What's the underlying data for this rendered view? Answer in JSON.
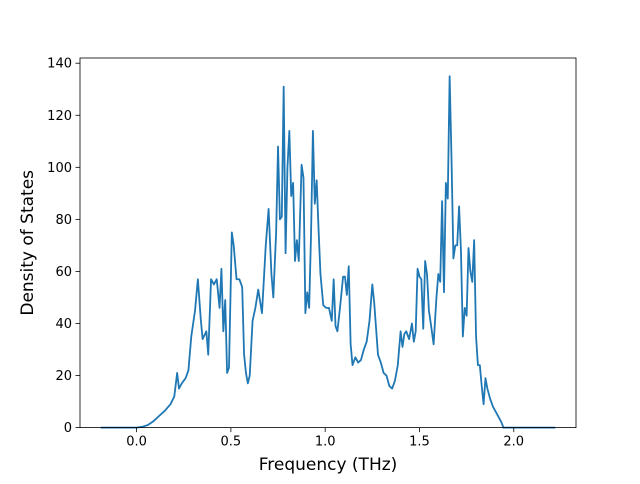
{
  "chart_data": {
    "type": "line",
    "title": "",
    "xlabel": "Frequency (THz)",
    "ylabel": "Density of States",
    "xlim": [
      -0.3,
      2.33
    ],
    "ylim": [
      0,
      142
    ],
    "grid": false,
    "line_color": "#1f77b4",
    "x_ticks": [
      0.0,
      0.5,
      1.0,
      1.5,
      2.0
    ],
    "x_tick_labels": [
      "0.0",
      "0.5",
      "1.0",
      "1.5",
      "2.0"
    ],
    "y_ticks": [
      0,
      20,
      40,
      60,
      80,
      100,
      120,
      140
    ],
    "y_tick_labels": [
      "0",
      "20",
      "40",
      "60",
      "80",
      "100",
      "120",
      "140"
    ],
    "series": [
      {
        "points": [
          [
            -0.19,
            0
          ],
          [
            0.0,
            0
          ],
          [
            0.03,
            0.3
          ],
          [
            0.06,
            1
          ],
          [
            0.09,
            2.5
          ],
          [
            0.12,
            4.5
          ],
          [
            0.15,
            6.5
          ],
          [
            0.18,
            9
          ],
          [
            0.2,
            12
          ],
          [
            0.215,
            21
          ],
          [
            0.225,
            15
          ],
          [
            0.24,
            17
          ],
          [
            0.26,
            19
          ],
          [
            0.275,
            22
          ],
          [
            0.29,
            35
          ],
          [
            0.31,
            45
          ],
          [
            0.325,
            57
          ],
          [
            0.34,
            42
          ],
          [
            0.35,
            34
          ],
          [
            0.37,
            37
          ],
          [
            0.38,
            28
          ],
          [
            0.395,
            57
          ],
          [
            0.41,
            55
          ],
          [
            0.425,
            57
          ],
          [
            0.44,
            46
          ],
          [
            0.45,
            61
          ],
          [
            0.46,
            37
          ],
          [
            0.47,
            49
          ],
          [
            0.48,
            21
          ],
          [
            0.49,
            23
          ],
          [
            0.505,
            75
          ],
          [
            0.515,
            70
          ],
          [
            0.53,
            57
          ],
          [
            0.545,
            57
          ],
          [
            0.56,
            54
          ],
          [
            0.57,
            28
          ],
          [
            0.58,
            21
          ],
          [
            0.59,
            17
          ],
          [
            0.6,
            20
          ],
          [
            0.615,
            41
          ],
          [
            0.63,
            46
          ],
          [
            0.645,
            53
          ],
          [
            0.665,
            44
          ],
          [
            0.685,
            70
          ],
          [
            0.7,
            84
          ],
          [
            0.715,
            59
          ],
          [
            0.725,
            50
          ],
          [
            0.74,
            75
          ],
          [
            0.75,
            108
          ],
          [
            0.76,
            80
          ],
          [
            0.77,
            81
          ],
          [
            0.78,
            131
          ],
          [
            0.79,
            67
          ],
          [
            0.8,
            100
          ],
          [
            0.81,
            114
          ],
          [
            0.82,
            89
          ],
          [
            0.83,
            94
          ],
          [
            0.84,
            64
          ],
          [
            0.85,
            72
          ],
          [
            0.86,
            64
          ],
          [
            0.875,
            101
          ],
          [
            0.885,
            96
          ],
          [
            0.895,
            44
          ],
          [
            0.905,
            52
          ],
          [
            0.915,
            46
          ],
          [
            0.925,
            74
          ],
          [
            0.935,
            114
          ],
          [
            0.945,
            86
          ],
          [
            0.955,
            95
          ],
          [
            0.965,
            76
          ],
          [
            0.975,
            59
          ],
          [
            0.99,
            47
          ],
          [
            1.005,
            46
          ],
          [
            1.02,
            46
          ],
          [
            1.035,
            41
          ],
          [
            1.045,
            57
          ],
          [
            1.055,
            39
          ],
          [
            1.065,
            37
          ],
          [
            1.08,
            47
          ],
          [
            1.095,
            58
          ],
          [
            1.105,
            58
          ],
          [
            1.115,
            51
          ],
          [
            1.125,
            62
          ],
          [
            1.135,
            32
          ],
          [
            1.145,
            24
          ],
          [
            1.16,
            27
          ],
          [
            1.175,
            25
          ],
          [
            1.19,
            26
          ],
          [
            1.205,
            30
          ],
          [
            1.22,
            33
          ],
          [
            1.235,
            41
          ],
          [
            1.25,
            55
          ],
          [
            1.26,
            48
          ],
          [
            1.27,
            38
          ],
          [
            1.28,
            28
          ],
          [
            1.295,
            25
          ],
          [
            1.31,
            21
          ],
          [
            1.325,
            20
          ],
          [
            1.34,
            16
          ],
          [
            1.355,
            15
          ],
          [
            1.37,
            18
          ],
          [
            1.385,
            24
          ],
          [
            1.4,
            37
          ],
          [
            1.41,
            31
          ],
          [
            1.42,
            36
          ],
          [
            1.43,
            37
          ],
          [
            1.445,
            34
          ],
          [
            1.46,
            40
          ],
          [
            1.47,
            33
          ],
          [
            1.48,
            37
          ],
          [
            1.49,
            61
          ],
          [
            1.5,
            58
          ],
          [
            1.51,
            57
          ],
          [
            1.52,
            38
          ],
          [
            1.53,
            64
          ],
          [
            1.54,
            59
          ],
          [
            1.55,
            45
          ],
          [
            1.56,
            40
          ],
          [
            1.575,
            32
          ],
          [
            1.59,
            50
          ],
          [
            1.6,
            59
          ],
          [
            1.61,
            56
          ],
          [
            1.62,
            87
          ],
          [
            1.63,
            52
          ],
          [
            1.64,
            94
          ],
          [
            1.65,
            88
          ],
          [
            1.66,
            135
          ],
          [
            1.67,
            103
          ],
          [
            1.68,
            65
          ],
          [
            1.69,
            70
          ],
          [
            1.7,
            70
          ],
          [
            1.71,
            85
          ],
          [
            1.72,
            68
          ],
          [
            1.73,
            35
          ],
          [
            1.74,
            46
          ],
          [
            1.75,
            43
          ],
          [
            1.76,
            69
          ],
          [
            1.77,
            60
          ],
          [
            1.78,
            56
          ],
          [
            1.79,
            72
          ],
          [
            1.8,
            35
          ],
          [
            1.81,
            24
          ],
          [
            1.82,
            24
          ],
          [
            1.83,
            16
          ],
          [
            1.84,
            9
          ],
          [
            1.85,
            19
          ],
          [
            1.86,
            15
          ],
          [
            1.875,
            11
          ],
          [
            1.89,
            8
          ],
          [
            1.905,
            6
          ],
          [
            1.92,
            4
          ],
          [
            1.935,
            2
          ],
          [
            1.945,
            0
          ],
          [
            1.96,
            0
          ],
          [
            2.0,
            0
          ],
          [
            2.1,
            0
          ],
          [
            2.22,
            0
          ]
        ]
      }
    ]
  }
}
